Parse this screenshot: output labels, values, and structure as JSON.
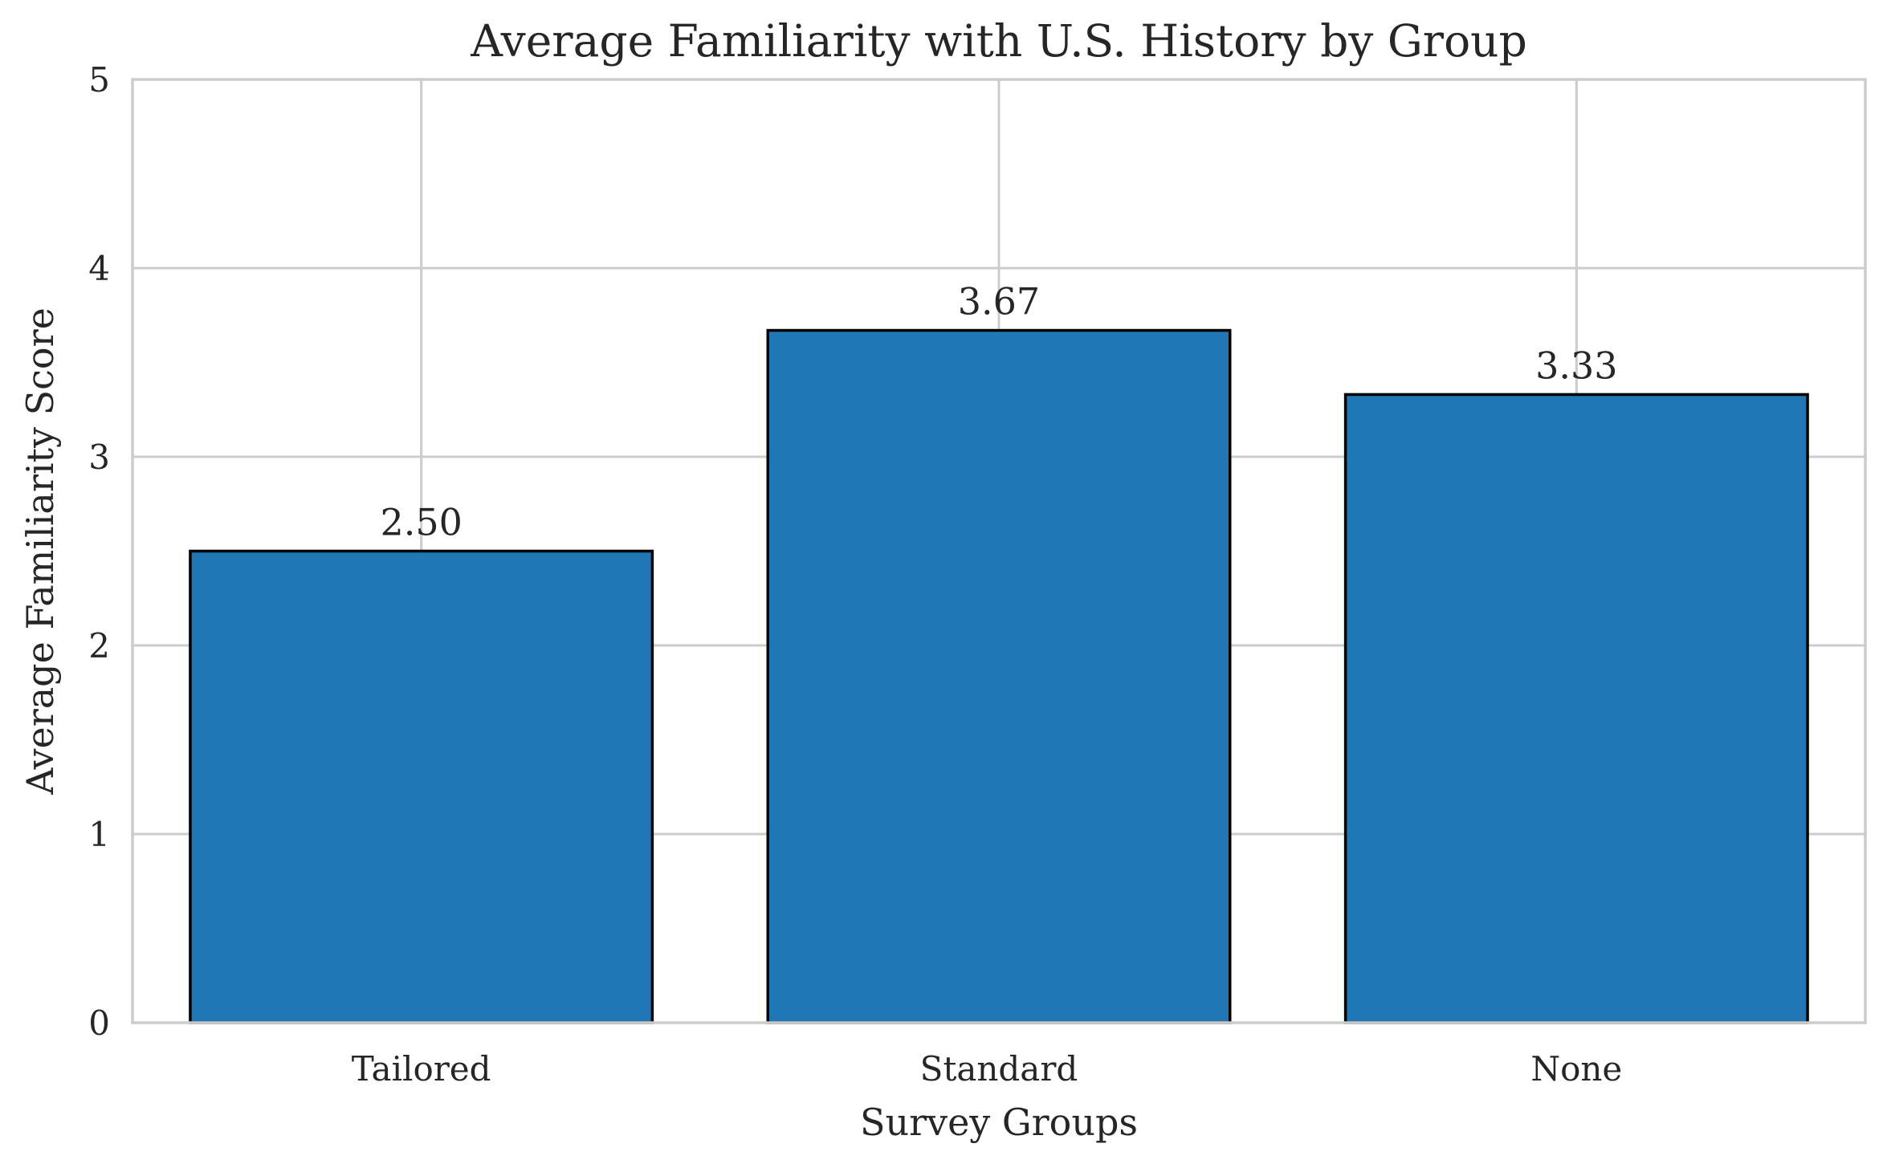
{
  "chart_data": {
    "type": "bar",
    "title": "Average Familiarity with U.S. History by Group",
    "xlabel": "Survey Groups",
    "ylabel": "Average Familiarity Score",
    "categories": [
      "Tailored",
      "Standard",
      "None"
    ],
    "values": [
      2.5,
      3.67,
      3.33
    ],
    "value_labels": [
      "2.50",
      "3.67",
      "3.33"
    ],
    "ylim": [
      0,
      5
    ],
    "yticks": [
      0,
      1,
      2,
      3,
      4,
      5
    ],
    "grid": true,
    "bar_color": "#2077b4",
    "edge_color": "#000000",
    "grid_color": "#cccccc"
  }
}
